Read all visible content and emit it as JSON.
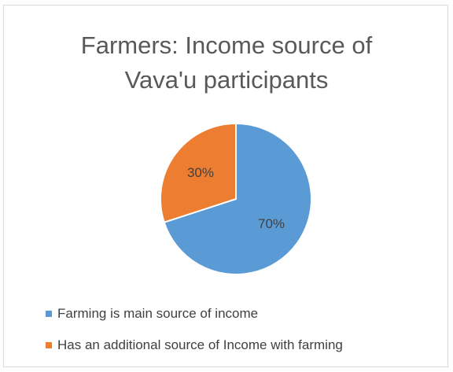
{
  "chart_data": {
    "type": "pie",
    "title_lines": [
      "Farmers: Income source of",
      "Vava'u participants"
    ],
    "categories": [
      "Farming is main source of income",
      "Has an additional source of Income with farming"
    ],
    "values": [
      70,
      30
    ],
    "data_labels": [
      "70%",
      "30%"
    ],
    "colors": [
      "#5b9bd5",
      "#ed7d31"
    ],
    "legend_position": "bottom"
  }
}
